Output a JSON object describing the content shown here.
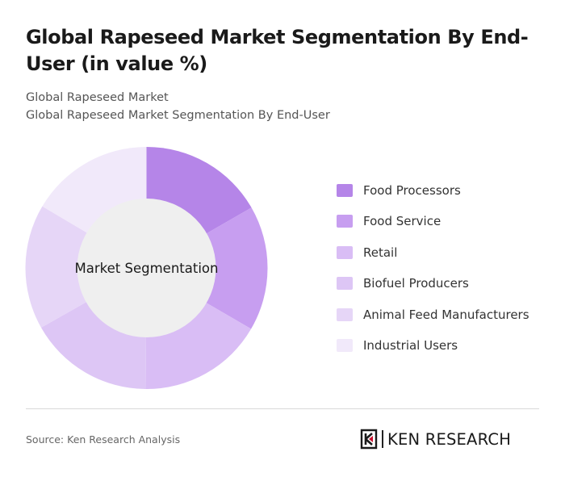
{
  "header": {
    "title": "Global Rapeseed Market Segmentation By End-User (in value %)",
    "subtitle_market": "Global Rapeseed Market",
    "subtitle_segment": "Global Rapeseed Market Segmentation By End-User"
  },
  "chart_data": {
    "type": "pie",
    "donut": true,
    "center_label": "Market Segmentation",
    "categories": [
      "Food Processors",
      "Food Service",
      "Retail",
      "Biofuel Producers",
      "Animal Feed Manufacturers",
      "Industrial Users"
    ],
    "values": [
      16.7,
      16.7,
      16.7,
      16.7,
      16.7,
      16.5
    ],
    "colors": [
      "#b585e8",
      "#c79ef0",
      "#d9bdf5",
      "#ddc6f5",
      "#e6d6f7",
      "#f1e9fa"
    ],
    "center_color": "#efefef",
    "legend_position": "right"
  },
  "footer": {
    "source": "Source: Ken Research Analysis",
    "brand": "KEN RESEARCH"
  }
}
